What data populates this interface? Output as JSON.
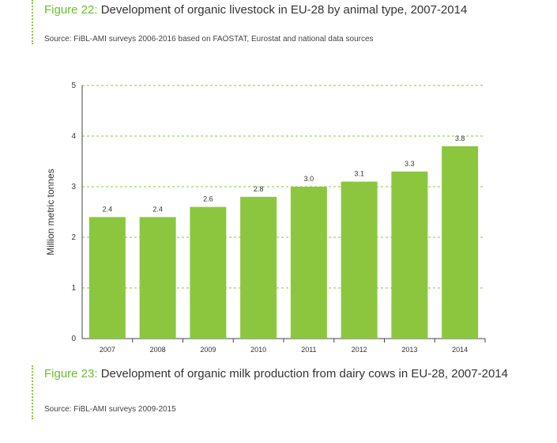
{
  "figures": [
    {
      "number": "Figure 22:",
      "title": "Development of organic livestock in EU-28 by animal type, 2007-2014",
      "source": "Source: FiBL-AMI surveys 2006-2016 based on FAOSTAT, Eurostat and national data sources"
    },
    {
      "number": "Figure 23:",
      "title": "Development of organic milk production from dairy cows in EU-28, 2007-2014",
      "source": "Source: FiBL-AMI surveys 2009-2015"
    }
  ],
  "chart_data": {
    "type": "bar",
    "categories": [
      "2007",
      "2008",
      "2009",
      "2010",
      "2011",
      "2012",
      "2013",
      "2014"
    ],
    "values": [
      2.4,
      2.4,
      2.6,
      2.8,
      3.0,
      3.1,
      3.3,
      3.8
    ],
    "data_labels": [
      "2.4",
      "2.4",
      "2.6",
      "2.8",
      "3.0",
      "3.1",
      "3.3",
      "3.8"
    ],
    "ylabel": "Million metric tonnes",
    "ylim": [
      0,
      5
    ],
    "yticks": [
      0,
      1,
      2,
      3,
      4,
      5
    ],
    "grid": true,
    "colors": {
      "bar": "#8cc63f",
      "grid": "#8cc63f",
      "accent": "#6abf2e"
    }
  }
}
